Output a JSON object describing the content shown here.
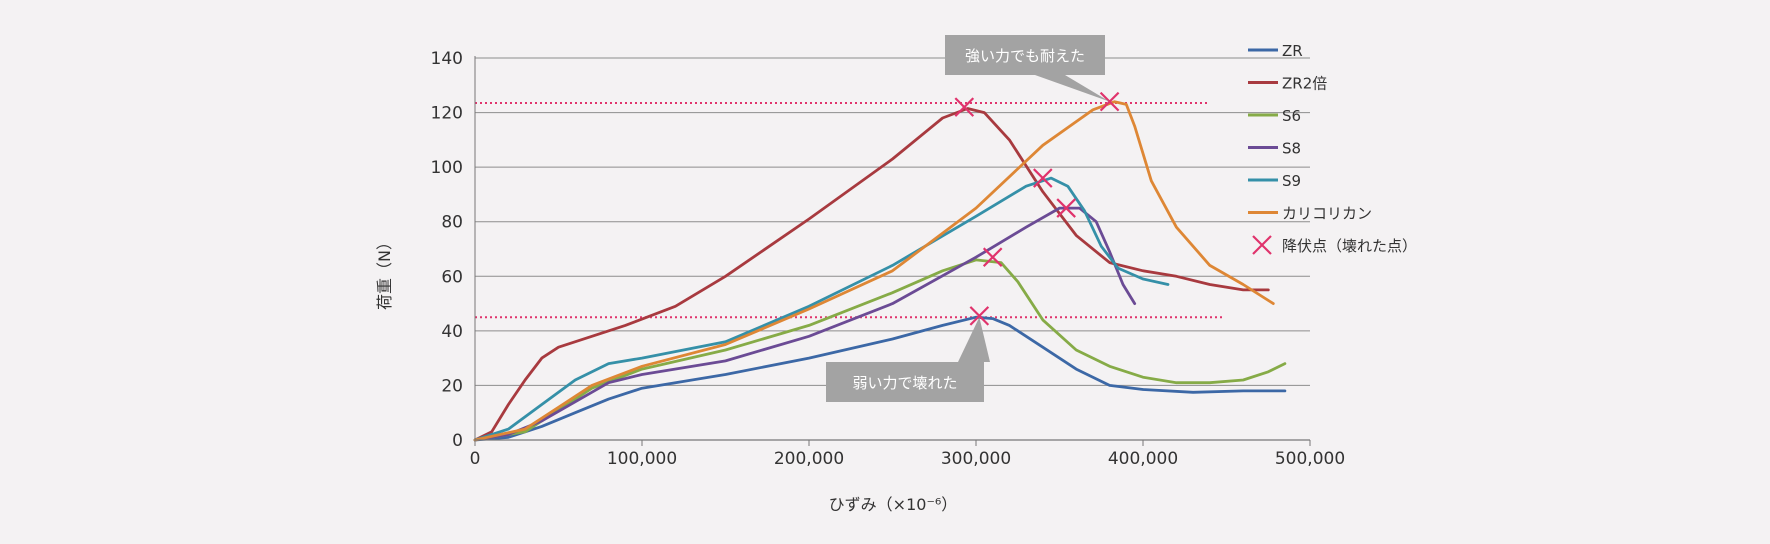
{
  "chart_data": {
    "type": "line",
    "title": "",
    "xlabel": "ひずみ（×10⁻⁶）",
    "ylabel": "荷重（N）",
    "xlim": [
      0,
      500000
    ],
    "ylim": [
      0,
      140
    ],
    "x_ticks": [
      0,
      100000,
      200000,
      300000,
      400000,
      500000
    ],
    "x_tick_labels": [
      "0",
      "100,000",
      "200,000",
      "300,000",
      "400,000",
      "500,000"
    ],
    "y_ticks": [
      0,
      20,
      40,
      60,
      80,
      100,
      120,
      140
    ],
    "y_tick_labels": [
      "0",
      "20",
      "40",
      "60",
      "80",
      "100",
      "120",
      "140"
    ],
    "grid": "horizontal",
    "legend_position": "right",
    "series": [
      {
        "name": "ZR",
        "color": "#3c68a6",
        "points": [
          [
            0,
            0
          ],
          [
            20000,
            1
          ],
          [
            40000,
            5
          ],
          [
            60000,
            10
          ],
          [
            80000,
            15
          ],
          [
            100000,
            19
          ],
          [
            120000,
            21
          ],
          [
            150000,
            24
          ],
          [
            200000,
            30
          ],
          [
            250000,
            37
          ],
          [
            280000,
            42
          ],
          [
            300000,
            45
          ],
          [
            310000,
            44.5
          ],
          [
            320000,
            42
          ],
          [
            340000,
            34
          ],
          [
            360000,
            26
          ],
          [
            380000,
            20
          ],
          [
            400000,
            18.5
          ],
          [
            430000,
            17.5
          ],
          [
            460000,
            18
          ],
          [
            485000,
            18
          ]
        ]
      },
      {
        "name": "ZR2倍",
        "color": "#a83a3f",
        "points": [
          [
            0,
            0
          ],
          [
            10000,
            3
          ],
          [
            20000,
            13
          ],
          [
            30000,
            22
          ],
          [
            40000,
            30
          ],
          [
            50000,
            34
          ],
          [
            70000,
            38
          ],
          [
            90000,
            42
          ],
          [
            120000,
            49
          ],
          [
            150000,
            60
          ],
          [
            200000,
            81
          ],
          [
            250000,
            103
          ],
          [
            280000,
            118
          ],
          [
            295000,
            121.5
          ],
          [
            305000,
            120
          ],
          [
            320000,
            110
          ],
          [
            340000,
            91
          ],
          [
            360000,
            75
          ],
          [
            380000,
            65
          ],
          [
            400000,
            62
          ],
          [
            420000,
            60
          ],
          [
            440000,
            57
          ],
          [
            460000,
            55
          ],
          [
            475000,
            55
          ]
        ]
      },
      {
        "name": "S6",
        "color": "#86ab47",
        "points": [
          [
            0,
            0
          ],
          [
            30000,
            3
          ],
          [
            50000,
            11
          ],
          [
            70000,
            19
          ],
          [
            100000,
            26
          ],
          [
            150000,
            33
          ],
          [
            200000,
            42
          ],
          [
            250000,
            54
          ],
          [
            280000,
            62
          ],
          [
            300000,
            66
          ],
          [
            315000,
            65
          ],
          [
            325000,
            58
          ],
          [
            340000,
            44
          ],
          [
            360000,
            33
          ],
          [
            380000,
            27
          ],
          [
            400000,
            23
          ],
          [
            420000,
            21
          ],
          [
            440000,
            21
          ],
          [
            460000,
            22
          ],
          [
            475000,
            25
          ],
          [
            485000,
            28
          ]
        ]
      },
      {
        "name": "S8",
        "color": "#6b4b95",
        "points": [
          [
            0,
            0
          ],
          [
            20000,
            2
          ],
          [
            40000,
            7
          ],
          [
            60000,
            14
          ],
          [
            80000,
            21
          ],
          [
            100000,
            24
          ],
          [
            150000,
            29
          ],
          [
            200000,
            38
          ],
          [
            250000,
            50
          ],
          [
            300000,
            67
          ],
          [
            330000,
            78
          ],
          [
            350000,
            85
          ],
          [
            362000,
            85
          ],
          [
            372000,
            80
          ],
          [
            380000,
            69
          ],
          [
            388000,
            57
          ],
          [
            395000,
            50
          ]
        ]
      },
      {
        "name": "S9",
        "color": "#3590a8",
        "points": [
          [
            0,
            0
          ],
          [
            20000,
            4
          ],
          [
            40000,
            13
          ],
          [
            60000,
            22
          ],
          [
            80000,
            28
          ],
          [
            100000,
            30
          ],
          [
            150000,
            36
          ],
          [
            200000,
            49
          ],
          [
            250000,
            64
          ],
          [
            300000,
            82
          ],
          [
            330000,
            93
          ],
          [
            345000,
            96
          ],
          [
            355000,
            93
          ],
          [
            365000,
            84
          ],
          [
            375000,
            71
          ],
          [
            385000,
            63
          ],
          [
            400000,
            59
          ],
          [
            415000,
            57
          ]
        ]
      },
      {
        "name": "カリコリカン",
        "color": "#de8735",
        "points": [
          [
            0,
            0
          ],
          [
            30000,
            4
          ],
          [
            50000,
            12
          ],
          [
            70000,
            20
          ],
          [
            100000,
            27
          ],
          [
            150000,
            35
          ],
          [
            200000,
            48
          ],
          [
            250000,
            62
          ],
          [
            300000,
            85
          ],
          [
            340000,
            108
          ],
          [
            370000,
            121
          ],
          [
            383000,
            124
          ],
          [
            390000,
            123
          ],
          [
            395000,
            115
          ],
          [
            405000,
            95
          ],
          [
            420000,
            78
          ],
          [
            440000,
            64
          ],
          [
            460000,
            57
          ],
          [
            478000,
            50
          ]
        ]
      }
    ],
    "yield_points": {
      "name": "降伏点（壊れた点）",
      "color": "#e0336c",
      "points": [
        [
          293000,
          122
        ],
        [
          380000,
          124
        ],
        [
          340000,
          96
        ],
        [
          354000,
          85
        ],
        [
          310000,
          67
        ],
        [
          302000,
          45.5
        ]
      ]
    },
    "reference_lines": [
      {
        "y": 123.5,
        "x_range": [
          0,
          440000
        ],
        "color": "#e0336c"
      },
      {
        "y": 45,
        "x_range": [
          0,
          448000
        ],
        "color": "#e0336c"
      }
    ],
    "annotations": [
      {
        "text": "強い力でも耐えた",
        "target": [
          380000,
          124
        ]
      },
      {
        "text": "弱い力で壊れた",
        "target": [
          302000,
          45
        ]
      }
    ]
  }
}
